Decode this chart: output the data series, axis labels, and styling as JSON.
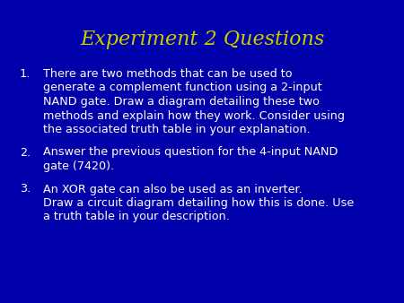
{
  "title": "Experiment 2 Questions",
  "title_color": "#CCCC00",
  "title_fontsize": 16,
  "background_color": "#0000AA",
  "body_text_color": "#ffffff",
  "body_fontsize": 9.2,
  "items": [
    {
      "number": "1.",
      "lines": [
        "There are two methods that can be used to",
        "generate a complement function using a 2-input",
        "NAND gate. Draw a diagram detailing these two",
        "methods and explain how they work. Consider using",
        "the associated truth table in your explanation."
      ]
    },
    {
      "number": "2.",
      "lines": [
        "Answer the previous question for the 4-input NAND",
        "gate (7420)."
      ]
    },
    {
      "number": "3.",
      "lines": [
        "An XOR gate can also be used as an inverter.",
        "Draw a circuit diagram detailing how this is done. Use",
        "a truth table in your description."
      ]
    }
  ],
  "fig_width": 4.5,
  "fig_height": 3.38,
  "dpi": 100
}
